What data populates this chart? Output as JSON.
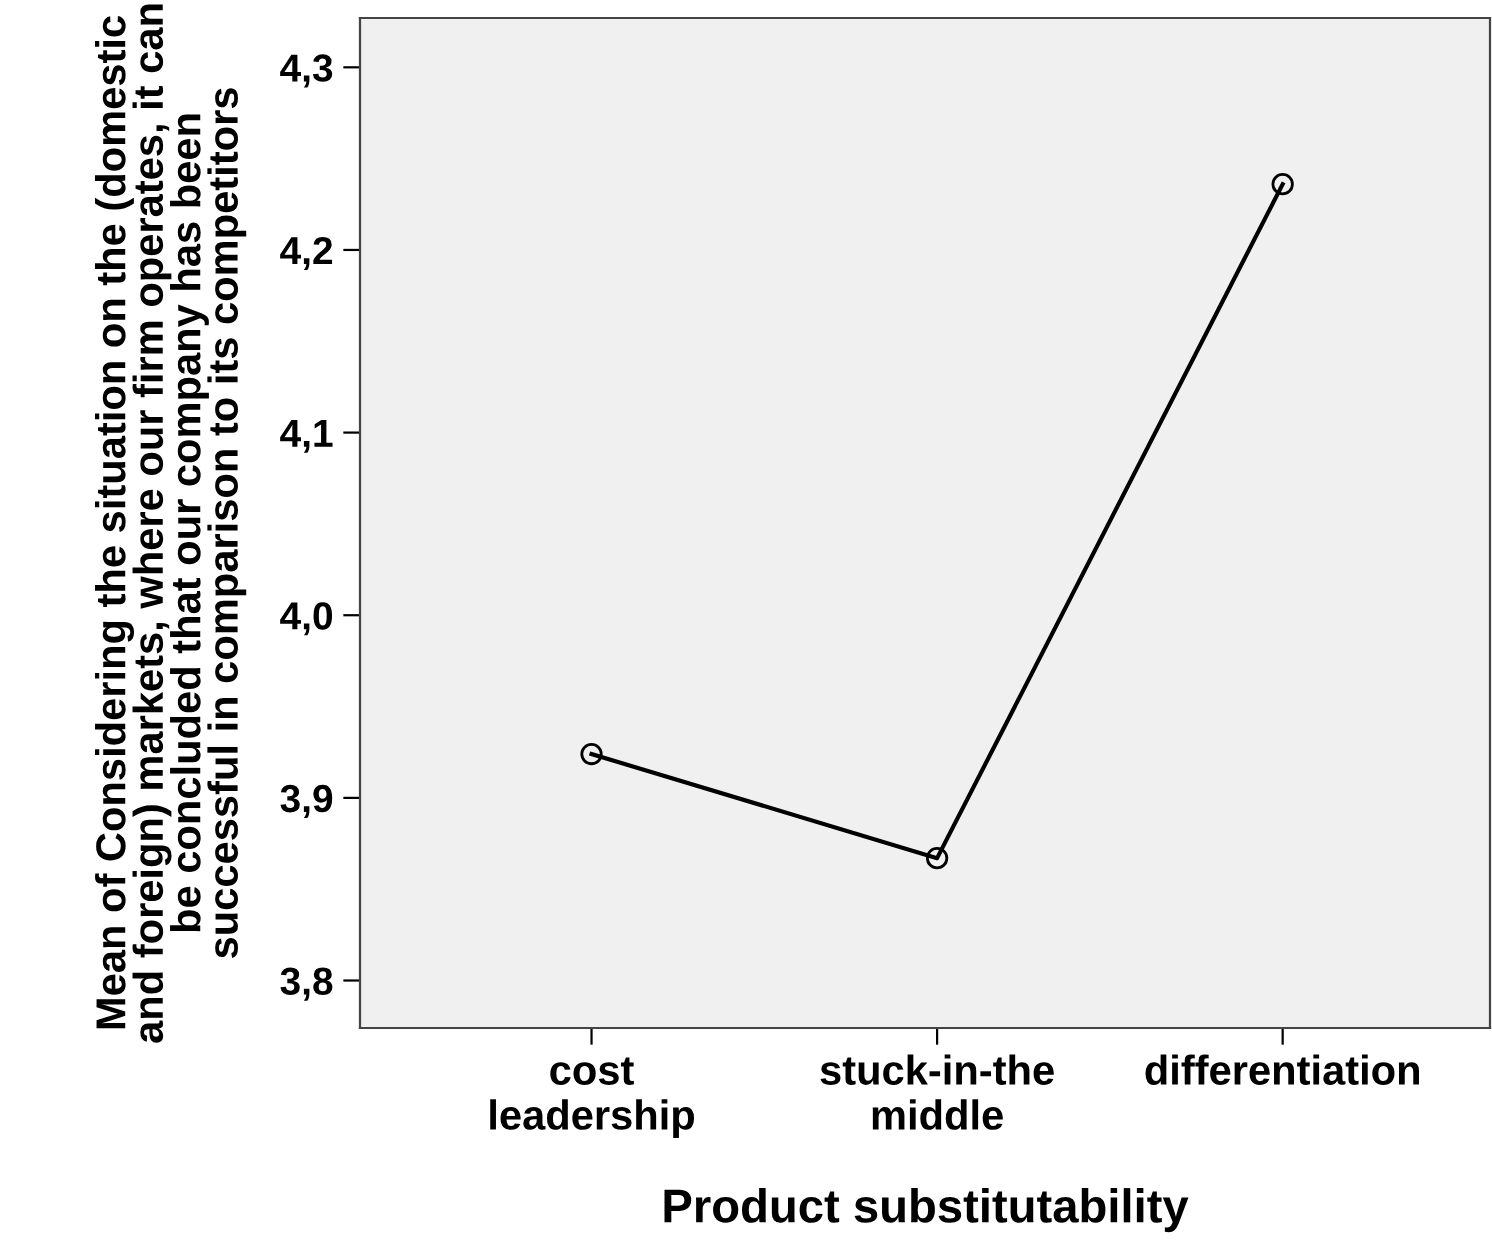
{
  "chart_data": {
    "type": "line",
    "xlabel": "Product substitutability",
    "ylabel": "Mean of Considering the situation on the (domestic and foreign) markets, where our firm operates, it can be concluded that our company has been successful in comparison to its competitors",
    "categories": [
      "cost\nleadership",
      "stuck-in-the\nmiddle",
      "differentiation"
    ],
    "series": [
      {
        "color": "#000000",
        "values": [
          3.924,
          3.867,
          4.236
        ]
      }
    ],
    "marker": "circle",
    "ylim": [
      3.774,
      4.327
    ],
    "yticks": [
      {
        "value": 3.8,
        "label": "3,8"
      },
      {
        "value": 3.9,
        "label": "3,9"
      },
      {
        "value": 4.0,
        "label": "4,0"
      },
      {
        "value": 4.1,
        "label": "4,1"
      },
      {
        "value": 4.2,
        "label": "4,2"
      },
      {
        "value": 4.3,
        "label": "4,3"
      }
    ],
    "grid": false
  }
}
